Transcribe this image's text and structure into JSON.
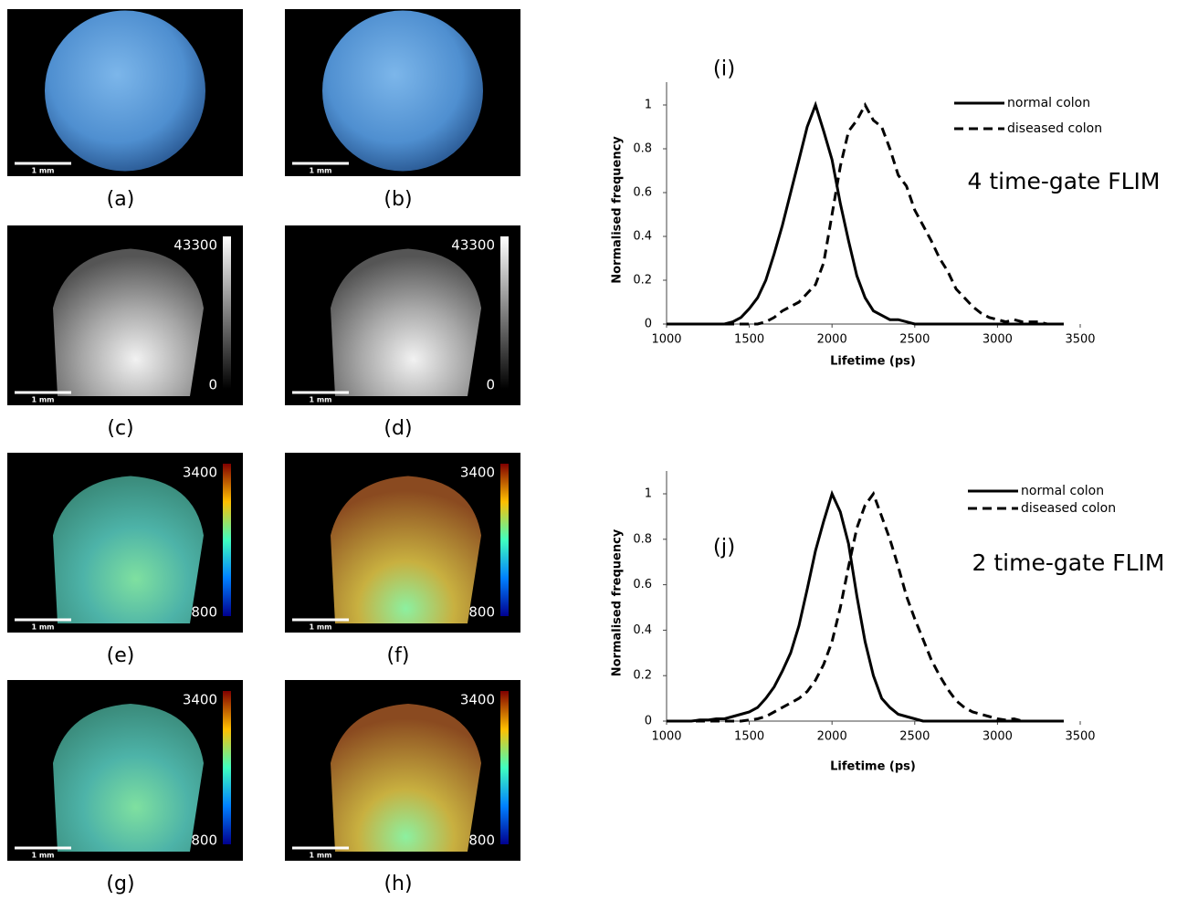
{
  "panels": [
    {
      "label": "(a)",
      "scale_bar": "1 mm"
    },
    {
      "label": "(b)",
      "scale_bar": "1 mm"
    },
    {
      "label": "(c)",
      "scale_bar": "1 mm",
      "colorbar": {
        "max": 43300,
        "min": 0
      }
    },
    {
      "label": "(d)",
      "scale_bar": "1 mm",
      "colorbar": {
        "max": 43300,
        "min": 0
      }
    },
    {
      "label": "(e)",
      "scale_bar": "1 mm",
      "colorbar": {
        "max": 3400,
        "min": 800
      }
    },
    {
      "label": "(f)",
      "scale_bar": "1 mm",
      "colorbar": {
        "max": 3400,
        "min": 800
      }
    },
    {
      "label": "(g)",
      "scale_bar": "1 mm",
      "colorbar": {
        "max": 3400,
        "min": 800
      }
    },
    {
      "label": "(h)",
      "scale_bar": "1 mm",
      "colorbar": {
        "max": 3400,
        "min": 800
      }
    }
  ],
  "chart_data": [
    {
      "type": "line",
      "title": "(i)",
      "annotation": "4 time-gate  FLIM",
      "xlabel": "Lifetime (ps)",
      "ylabel": "Normalised frequency",
      "x": [
        1000,
        1050,
        1100,
        1150,
        1200,
        1250,
        1300,
        1350,
        1400,
        1450,
        1500,
        1550,
        1600,
        1650,
        1700,
        1750,
        1800,
        1850,
        1900,
        1950,
        2000,
        2050,
        2100,
        2150,
        2200,
        2250,
        2300,
        2350,
        2400,
        2450,
        2500,
        2550,
        2600,
        2650,
        2700,
        2750,
        2800,
        2850,
        2900,
        2950,
        3000,
        3050,
        3100,
        3150,
        3200,
        3250,
        3300,
        3350,
        3400
      ],
      "series": [
        {
          "name": "normal colon",
          "color": "#000000",
          "dash": "solid",
          "values": [
            0,
            0,
            0,
            0,
            0,
            0,
            0,
            0,
            0.01,
            0.03,
            0.07,
            0.12,
            0.2,
            0.32,
            0.45,
            0.6,
            0.75,
            0.9,
            1,
            0.88,
            0.75,
            0.55,
            0.38,
            0.22,
            0.12,
            0.06,
            0.04,
            0.02,
            0.02,
            0.01,
            0,
            0,
            0,
            0,
            0,
            0,
            0,
            0,
            0,
            0,
            0,
            0,
            0,
            0,
            0,
            0,
            0,
            0,
            0
          ]
        },
        {
          "name": "diseased colon",
          "color": "#000000",
          "dash": "dashed",
          "values": [
            0,
            0,
            0,
            0,
            0,
            0,
            0,
            0,
            0,
            0,
            0,
            0,
            0.01,
            0.03,
            0.06,
            0.08,
            0.1,
            0.14,
            0.18,
            0.28,
            0.5,
            0.72,
            0.88,
            0.93,
            1,
            0.93,
            0.9,
            0.8,
            0.68,
            0.63,
            0.52,
            0.45,
            0.38,
            0.3,
            0.24,
            0.16,
            0.12,
            0.08,
            0.05,
            0.03,
            0.02,
            0.01,
            0.02,
            0.01,
            0.01,
            0.01,
            0,
            0,
            0
          ]
        }
      ],
      "xlim": [
        1000,
        3500
      ],
      "ylim": [
        0,
        1
      ],
      "xticks": [
        1000,
        1500,
        2000,
        2500,
        3000,
        3500
      ],
      "yticks": [
        0,
        0.2,
        0.4,
        0.6,
        0.8,
        1
      ],
      "legend": "upper right"
    },
    {
      "type": "line",
      "title": "(j)",
      "annotation": "2 time-gate FLIM",
      "xlabel": "Lifetime (ps)",
      "ylabel": "Normalised frequency",
      "x": [
        1000,
        1050,
        1100,
        1150,
        1200,
        1250,
        1300,
        1350,
        1400,
        1450,
        1500,
        1550,
        1600,
        1650,
        1700,
        1750,
        1800,
        1850,
        1900,
        1950,
        2000,
        2050,
        2100,
        2150,
        2200,
        2250,
        2300,
        2350,
        2400,
        2450,
        2500,
        2550,
        2600,
        2650,
        2700,
        2750,
        2800,
        2850,
        2900,
        2950,
        3000,
        3050,
        3100,
        3150,
        3200,
        3250,
        3300,
        3350,
        3400
      ],
      "series": [
        {
          "name": "normal colon",
          "color": "#000000",
          "dash": "solid",
          "values": [
            0,
            0,
            0,
            0,
            0.005,
            0.005,
            0.01,
            0.01,
            0.02,
            0.03,
            0.04,
            0.06,
            0.1,
            0.15,
            0.22,
            0.3,
            0.42,
            0.58,
            0.75,
            0.88,
            1,
            0.92,
            0.78,
            0.55,
            0.35,
            0.2,
            0.1,
            0.06,
            0.03,
            0.02,
            0.01,
            0,
            0,
            0,
            0,
            0,
            0,
            0,
            0,
            0,
            0,
            0,
            0,
            0,
            0,
            0,
            0,
            0,
            0
          ]
        },
        {
          "name": "diseased colon",
          "color": "#000000",
          "dash": "dashed",
          "values": [
            0,
            0,
            0,
            0,
            0,
            0,
            0,
            0,
            0,
            0,
            0.005,
            0.01,
            0.02,
            0.04,
            0.06,
            0.08,
            0.1,
            0.13,
            0.18,
            0.25,
            0.35,
            0.5,
            0.68,
            0.85,
            0.95,
            1,
            0.9,
            0.8,
            0.68,
            0.55,
            0.45,
            0.36,
            0.27,
            0.2,
            0.14,
            0.09,
            0.06,
            0.04,
            0.03,
            0.02,
            0.01,
            0.005,
            0.01,
            0,
            0,
            0,
            0,
            0,
            0
          ]
        }
      ],
      "xlim": [
        1000,
        3500
      ],
      "ylim": [
        0,
        1
      ],
      "xticks": [
        1000,
        1500,
        2000,
        2500,
        3000,
        3500
      ],
      "yticks": [
        0,
        0.2,
        0.4,
        0.6,
        0.8,
        1
      ],
      "legend": "upper right"
    }
  ]
}
